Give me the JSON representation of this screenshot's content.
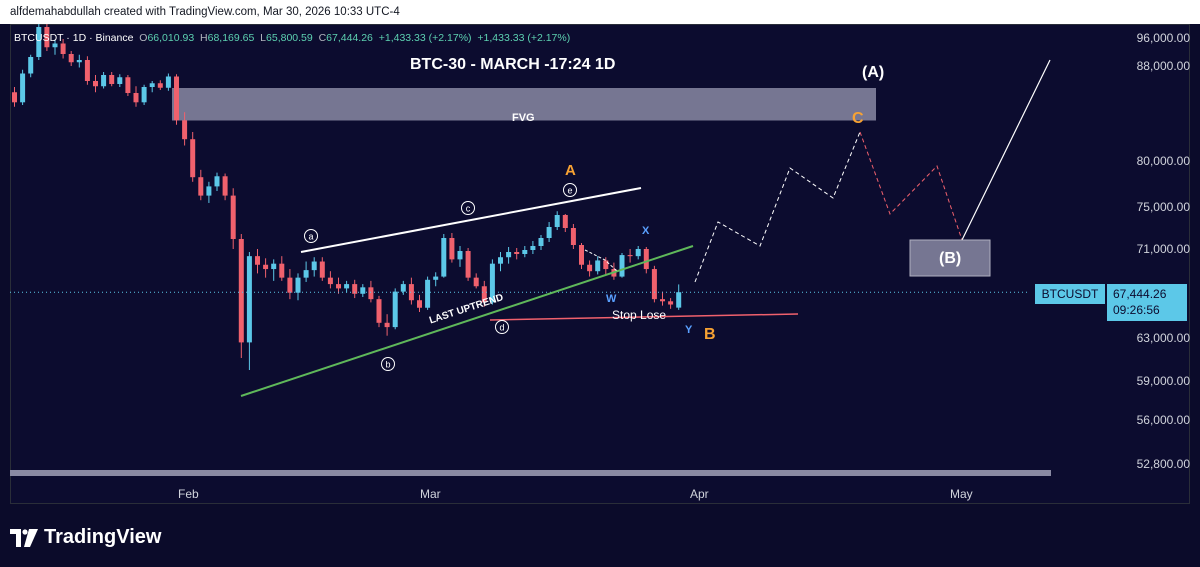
{
  "attribution": "alfdemahabdullah created with TradingView.com, Mar 30, 2026 10:33 UTC-4",
  "legend": {
    "symbol": "BTCUSDT · 1D · Binance",
    "o_label": "O",
    "o": "66,010.93",
    "h_label": "H",
    "h": "68,169.65",
    "l_label": "L",
    "l": "65,800.59",
    "c_label": "C",
    "c": "67,444.26",
    "change1": "+1,433.33 (+2.17%)",
    "change2": "+1,433.33 (+2.17%)"
  },
  "title": "BTC-30 - MARCH -17:24 1D",
  "price_axis": [
    "96,000.00",
    "88,000.00",
    "80,000.00",
    "75,000.00",
    "71,000.00",
    "63,000.00",
    "59,000.00",
    "56,000.00",
    "52,800.00"
  ],
  "date_axis": [
    "Feb",
    "Mar",
    "Apr",
    "May"
  ],
  "symbol_badge": "BTCUSDT",
  "last_price": "67,444.26",
  "countdown": "09:26:56",
  "annotations": {
    "fvg": "FVG",
    "wave_A_big": "(A)",
    "wave_B_big": "(B)",
    "wave_C": "C",
    "wave_A": "A",
    "wave_B": "B",
    "wave_x": "X",
    "wave_w": "W",
    "wave_y": "Y",
    "circ_a": "a",
    "circ_b": "b",
    "circ_c": "c",
    "circ_d": "d",
    "circ_e": "e",
    "last_uptrend": "LAST UPTREND",
    "stop_loss": "Stop Lose"
  },
  "branding": {
    "logo_text": "TradingView"
  },
  "colors": {
    "up": "#5cc8e8",
    "down": "#f0616d",
    "background": "#0c0c2f",
    "orange": "#f7a233"
  },
  "chart_data": {
    "type": "candlestick",
    "symbol": "BTCUSDT",
    "interval": "1D",
    "ylim": [
      52800,
      96000
    ],
    "x_ticks": [
      "Feb",
      "Mar",
      "Apr",
      "May"
    ],
    "candles": [
      [
        88500,
        89200,
        86800,
        87300
      ],
      [
        87300,
        91500,
        87000,
        91000
      ],
      [
        91000,
        93500,
        90500,
        93200
      ],
      [
        93200,
        97800,
        92800,
        97200
      ],
      [
        97200,
        97600,
        94000,
        94500
      ],
      [
        94500,
        95500,
        93500,
        95000
      ],
      [
        95000,
        95600,
        93000,
        93600
      ],
      [
        93600,
        94000,
        92000,
        92500
      ],
      [
        92500,
        93500,
        91800,
        92800
      ],
      [
        92800,
        93300,
        89500,
        90000
      ],
      [
        90000,
        90800,
        88500,
        89300
      ],
      [
        89300,
        91200,
        89000,
        90800
      ],
      [
        90800,
        91200,
        89300,
        89600
      ],
      [
        89600,
        90900,
        89200,
        90500
      ],
      [
        90500,
        90800,
        88000,
        88400
      ],
      [
        88400,
        89300,
        86800,
        87300
      ],
      [
        87300,
        89500,
        87000,
        89200
      ],
      [
        89200,
        90000,
        88500,
        89700
      ],
      [
        89700,
        90100,
        88800,
        89100
      ],
      [
        89100,
        91000,
        88700,
        90600
      ],
      [
        90600,
        90900,
        84800,
        85300
      ],
      [
        85300,
        86200,
        82500,
        83200
      ],
      [
        83200,
        84000,
        78500,
        79000
      ],
      [
        79000,
        79800,
        76500,
        77000
      ],
      [
        77000,
        78500,
        76200,
        78000
      ],
      [
        78000,
        79500,
        77500,
        79100
      ],
      [
        79100,
        79400,
        76500,
        77000
      ],
      [
        77000,
        77800,
        71500,
        72500
      ],
      [
        72500,
        73000,
        61500,
        62800
      ],
      [
        62800,
        71200,
        60500,
        70800
      ],
      [
        70800,
        71500,
        69200,
        70000
      ],
      [
        70000,
        70600,
        68800,
        69600
      ],
      [
        69600,
        70500,
        68500,
        70100
      ],
      [
        70100,
        70800,
        68500,
        68800
      ],
      [
        68800,
        69600,
        66800,
        67400
      ],
      [
        67400,
        69200,
        66700,
        68800
      ],
      [
        68800,
        70300,
        68400,
        69500
      ],
      [
        69500,
        70700,
        68900,
        70300
      ],
      [
        70300,
        70700,
        68500,
        68800
      ],
      [
        68800,
        69400,
        67800,
        68200
      ],
      [
        68200,
        68800,
        67300,
        67800
      ],
      [
        67800,
        68500,
        67400,
        68200
      ],
      [
        68200,
        68600,
        66900,
        67300
      ],
      [
        67300,
        68200,
        67000,
        67900
      ],
      [
        67900,
        68500,
        66500,
        66800
      ],
      [
        66800,
        67100,
        64200,
        64600
      ],
      [
        64600,
        65400,
        63400,
        64200
      ],
      [
        64200,
        67800,
        64000,
        67500
      ],
      [
        67500,
        68500,
        67200,
        68200
      ],
      [
        68200,
        68800,
        66300,
        66700
      ],
      [
        66700,
        67200,
        65600,
        66000
      ],
      [
        66000,
        68900,
        65800,
        68600
      ],
      [
        68600,
        69300,
        68000,
        68900
      ],
      [
        68900,
        73000,
        68800,
        72600
      ],
      [
        72600,
        73100,
        70200,
        70500
      ],
      [
        70500,
        71800,
        69800,
        71300
      ],
      [
        71300,
        71600,
        68500,
        68800
      ],
      [
        68800,
        69200,
        67800,
        68000
      ],
      [
        68000,
        68500,
        66100,
        66500
      ],
      [
        66500,
        70500,
        66300,
        70100
      ],
      [
        70100,
        71200,
        69400,
        70700
      ],
      [
        70700,
        71700,
        70100,
        71200
      ],
      [
        71200,
        71600,
        70500,
        71000
      ],
      [
        71000,
        71800,
        70700,
        71400
      ],
      [
        71400,
        72300,
        71000,
        71800
      ],
      [
        71800,
        72900,
        71400,
        72600
      ],
      [
        72600,
        74200,
        72200,
        73700
      ],
      [
        73700,
        75300,
        73400,
        74900
      ],
      [
        74900,
        75000,
        73200,
        73600
      ],
      [
        73600,
        74000,
        71500,
        71900
      ],
      [
        71900,
        72100,
        69600,
        70000
      ],
      [
        70000,
        70400,
        68900,
        69400
      ],
      [
        69400,
        70800,
        69100,
        70400
      ],
      [
        70400,
        70700,
        69100,
        69600
      ],
      [
        69600,
        70200,
        68600,
        68900
      ],
      [
        68900,
        71100,
        68800,
        70900
      ],
      [
        70900,
        71500,
        70200,
        70800
      ],
      [
        70800,
        71800,
        70500,
        71500
      ],
      [
        71500,
        71700,
        69200,
        69600
      ],
      [
        69600,
        69900,
        66500,
        66800
      ],
      [
        66800,
        67500,
        66200,
        66600
      ],
      [
        66600,
        66900,
        65900,
        66300
      ],
      [
        66010.93,
        68169.65,
        65800.59,
        67444.26
      ]
    ],
    "fvg_zone": [
      85500,
      88800
    ],
    "last_price": 67444.26
  }
}
